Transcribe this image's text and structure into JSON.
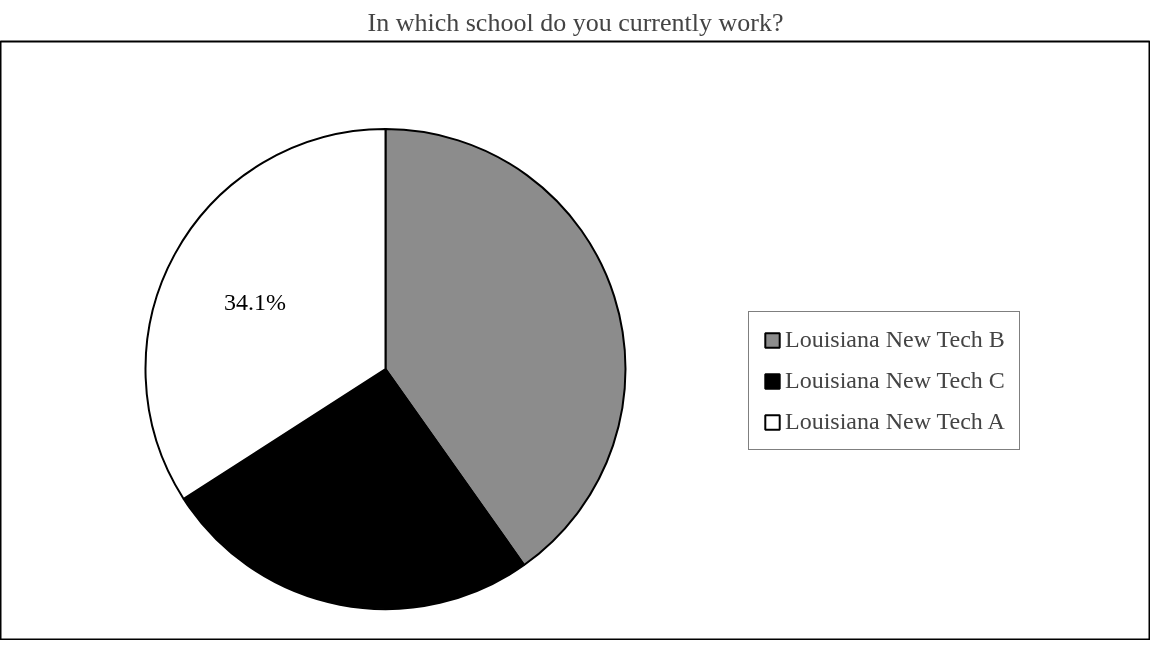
{
  "chart_data": {
    "type": "pie",
    "title": "In which school do you currently work?",
    "categories": [
      "Louisiana New Tech B",
      "Louisiana New Tech C",
      "Louisiana New Tech A"
    ],
    "values": [
      40.2,
      25.7,
      34.1
    ],
    "colors": [
      "#8c8c8c",
      "#000000",
      "#ffffff"
    ],
    "value_labels": [
      null,
      null,
      "34.1%"
    ],
    "legend": "right"
  }
}
